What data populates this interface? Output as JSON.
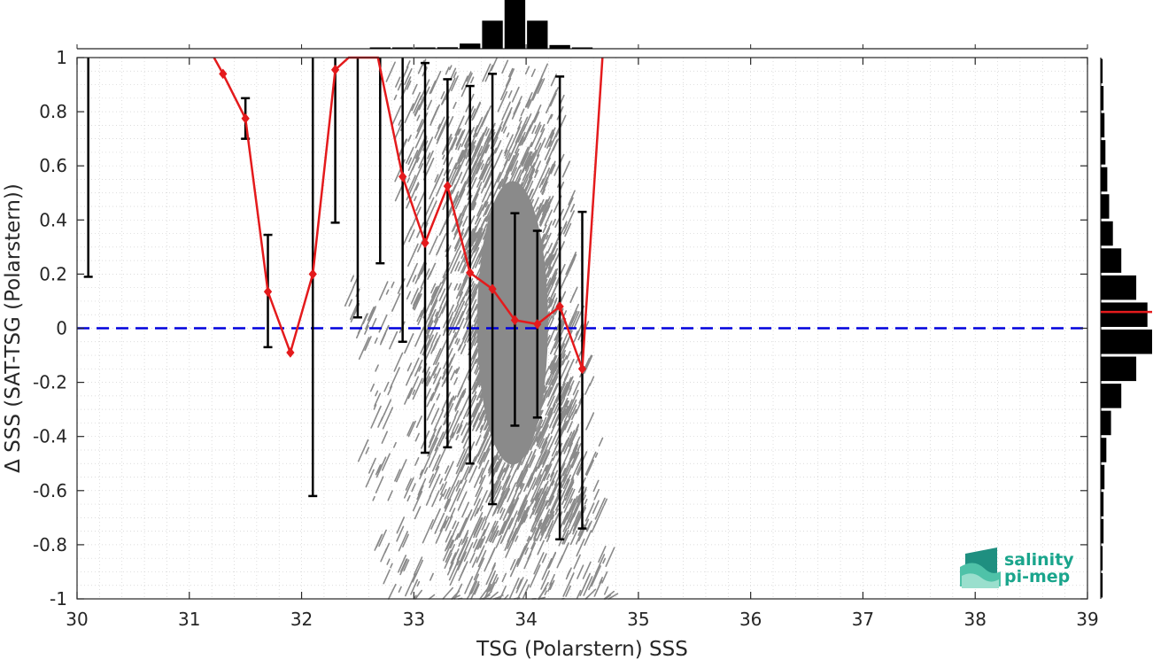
{
  "chart_data": {
    "type": "scatter",
    "xlabel": "TSG (Polarstern) SSS",
    "ylabel": "Δ SSS (SAT-TSG (Polarstern))",
    "xlim": [
      30,
      39
    ],
    "ylim": [
      -1,
      1
    ],
    "x_ticks": [
      "30",
      "31",
      "32",
      "33",
      "34",
      "35",
      "36",
      "37",
      "38",
      "39"
    ],
    "y_ticks": [
      "1",
      "0.8",
      "0.6",
      "0.4",
      "0.2",
      "0",
      "-0.2",
      "-0.4",
      "-0.6",
      "-0.8",
      "-1"
    ],
    "grid": true,
    "zero_line": {
      "y": 0,
      "style": "dashed",
      "color": "#0000dd"
    },
    "series": [
      {
        "role": "scatter",
        "color": "#808080",
        "description_points": "dense cloud of match-up points",
        "cloud_bands": [
          {
            "x0": 32.4,
            "x1": 33.5,
            "y_top": 0.2,
            "y_bot": -1.0
          },
          {
            "x0": 33.0,
            "x1": 34.5,
            "y_top": 1.0,
            "y_bot": -1.0
          },
          {
            "x0": 33.45,
            "x1": 34.3,
            "y_top": 0.75,
            "y_bot": -0.75
          }
        ]
      },
      {
        "role": "binned_mean",
        "color": "#e41a1c",
        "marker": "diamond",
        "x": [
          31.3,
          31.5,
          31.7,
          31.9,
          32.1,
          32.3,
          32.9,
          33.1,
          33.3,
          33.5,
          33.7,
          33.9,
          34.1,
          34.3,
          34.5
        ],
        "y": [
          0.94,
          0.775,
          0.135,
          -0.09,
          0.2,
          0.955,
          0.56,
          0.315,
          0.525,
          0.205,
          0.145,
          0.03,
          0.015,
          0.08,
          -0.15
        ]
      },
      {
        "role": "error_bars",
        "color": "#000000",
        "x": [
          30.1,
          31.5,
          31.7,
          32.1,
          32.3,
          32.5,
          32.7,
          32.9,
          33.1,
          33.3,
          33.5,
          33.7,
          33.9,
          34.1,
          34.3,
          34.5
        ],
        "lo": [
          0.19,
          0.7,
          -0.07,
          -0.62,
          0.39,
          0.04,
          0.24,
          -0.05,
          -0.46,
          -0.44,
          -0.5,
          -0.65,
          -0.36,
          -0.33,
          -0.78,
          -0.74
        ],
        "hi": [
          1.0,
          0.85,
          0.345,
          1.0,
          1.0,
          1.0,
          1.0,
          1.0,
          0.98,
          0.92,
          0.895,
          0.94,
          0.425,
          0.36,
          0.93,
          0.43
        ]
      }
    ],
    "top_histogram": {
      "bin_centers": [
        32.7,
        32.9,
        33.1,
        33.3,
        33.5,
        33.7,
        33.9,
        34.1,
        34.3,
        34.5
      ],
      "counts": [
        1,
        1,
        1,
        2,
        7,
        38,
        66,
        38,
        5,
        1
      ]
    },
    "right_histogram": {
      "bin_centers": [
        0.95,
        0.85,
        0.75,
        0.65,
        0.55,
        0.45,
        0.35,
        0.25,
        0.15,
        0.05,
        -0.05,
        -0.15,
        -0.25,
        -0.35,
        -0.45,
        -0.55,
        -0.65,
        -0.75,
        -0.85,
        -0.95
      ],
      "counts": [
        2,
        3,
        4,
        5,
        7,
        9,
        13,
        22,
        38,
        50,
        55,
        38,
        22,
        11,
        6,
        4,
        3,
        3,
        2,
        2
      ],
      "median_line": 0.06,
      "median_color": "#e41a1c"
    }
  },
  "logo": {
    "line1": "salinity",
    "line2": "pi-mep"
  }
}
